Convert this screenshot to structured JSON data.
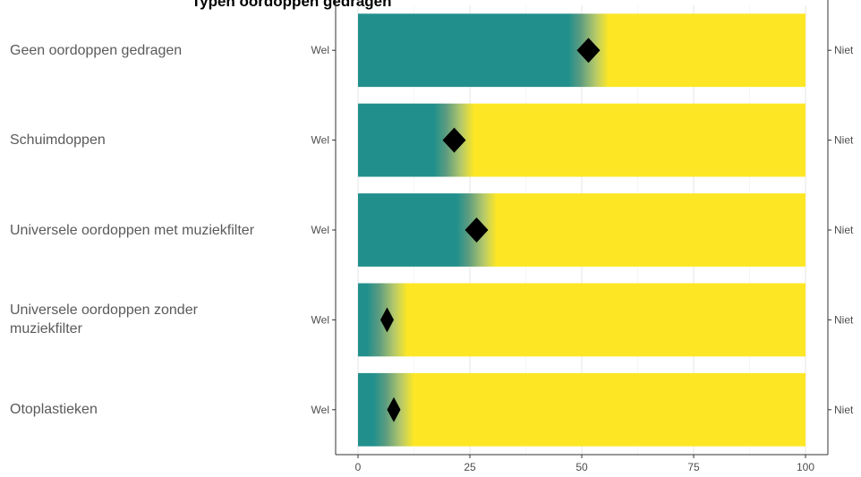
{
  "chart_data": {
    "type": "bar",
    "title": "Typen oordoppen gedragen",
    "categories": [
      "Geen oordoppen gedragen",
      "Schuimdoppen",
      "Universele oordoppen met muziekfilter",
      "Universele oordoppen zonder muziekfilter",
      "Otoplastieken"
    ],
    "values": [
      51.5,
      21.5,
      26.5,
      6.5,
      8.0
    ],
    "left_axis_label": "Wel",
    "right_axis_label": "Niet",
    "xlim": [
      -5,
      105
    ],
    "xticks": [
      0,
      25,
      50,
      75,
      100
    ],
    "colors": {
      "wel": "#21908c",
      "niet": "#fde725",
      "marker": "#000000"
    },
    "grid": true,
    "legend": "none"
  }
}
